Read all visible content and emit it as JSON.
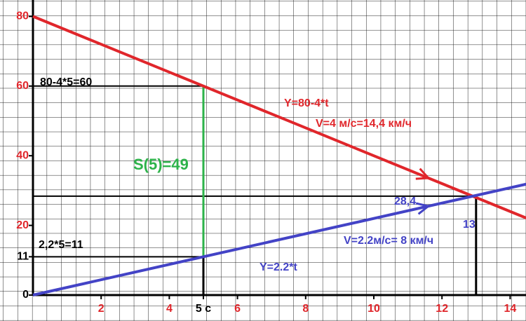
{
  "chart_data": {
    "type": "line",
    "x": [
      0,
      14.5
    ],
    "series": [
      {
        "name": "Y=80-4*t",
        "color": "#e0262b",
        "values": [
          80,
          22
        ]
      },
      {
        "name": "Y=2.2*t",
        "color": "#4343c6",
        "values": [
          0,
          31.9
        ]
      }
    ],
    "xlim": [
      0,
      14.6
    ],
    "ylim": [
      0,
      82
    ],
    "xticks": [
      2,
      4,
      {
        "value": 5,
        "label": "5 с"
      },
      6,
      8,
      10,
      12,
      14
    ],
    "yticks": [
      0,
      11,
      20,
      40,
      60,
      80
    ],
    "guides": [
      {
        "x": 5,
        "y": 60
      },
      {
        "x": 5,
        "y": 11
      },
      {
        "x": 13,
        "y": 28.4
      }
    ],
    "annotations": [
      "80-4*5=60",
      "S(5)=49",
      "Y=80-4*t",
      "V=4 м/с=14,4 км/ч",
      "28,4",
      "13",
      "V=2.2м/с= 8 км/ч",
      "Y=2.2*t",
      "2,2*5=11"
    ],
    "grid": true
  }
}
